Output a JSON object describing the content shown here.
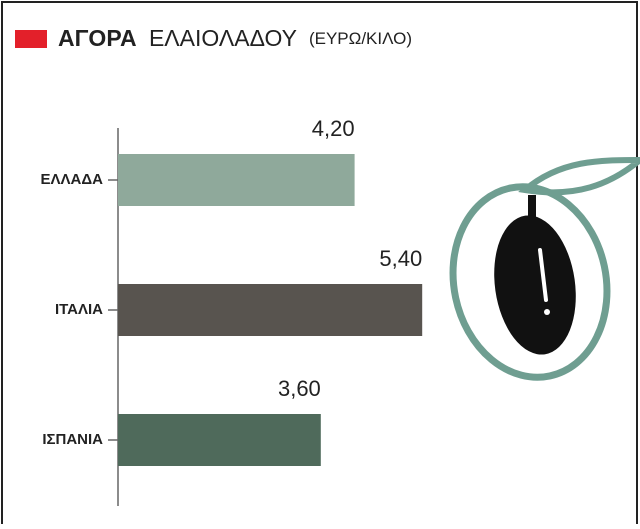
{
  "chart_data": {
    "type": "hbar",
    "title": "ΑΓΟΡΑ",
    "subtitle": "ΕΛΑΙΟΛΑΔΟΥ",
    "unit": "(ΕΥΡΩ/ΚΙΛΟ)",
    "categories": [
      "ΕΛΛΑΔΑ",
      "ΙΤΑΛΙΑ",
      "ΙΣΠΑΝΙΑ"
    ],
    "values": [
      4.2,
      5.4,
      3.6
    ],
    "value_labels": [
      "4,20",
      "5,40",
      "3,60"
    ],
    "colors": [
      "#8fa99b",
      "#58544f",
      "#4f6a5b"
    ],
    "xlim": [
      0,
      9
    ]
  }
}
